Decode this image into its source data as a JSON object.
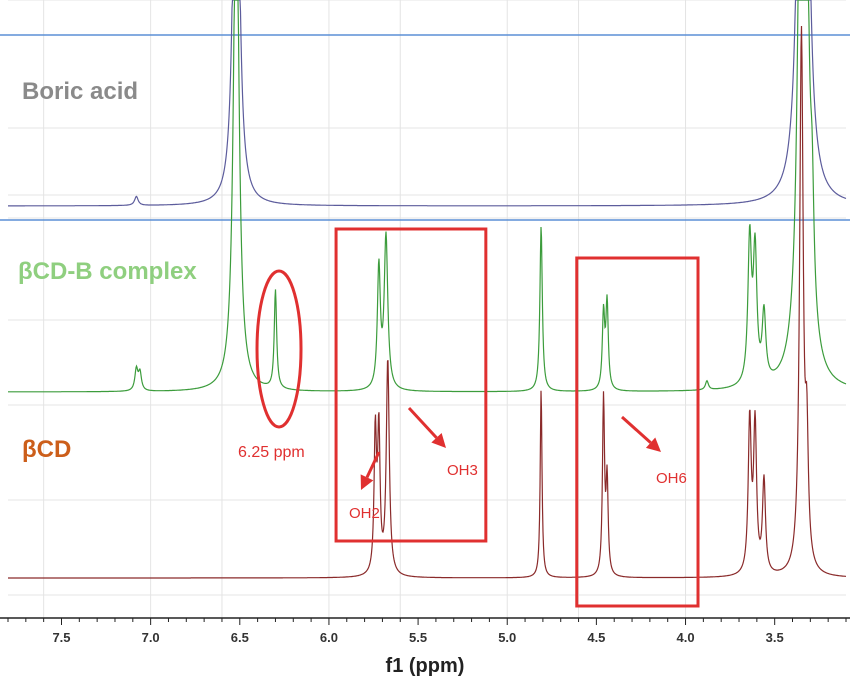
{
  "chart_data": {
    "type": "line",
    "title": "",
    "xlabel": "f1 (ppm)",
    "ylabel": "",
    "x_reversed": true,
    "xlim": [
      7.8,
      3.1
    ],
    "x_ticks": [
      "7.5",
      "7.0",
      "6.5",
      "6.0",
      "5.5",
      "5.0",
      "4.5",
      "4.0",
      "3.5"
    ],
    "grid": true,
    "series": [
      {
        "name": "Boric acid",
        "color": "#5c5c9c",
        "label_color": "#8a8a8a",
        "peaks": [
          {
            "ppm": 7.08,
            "height": 0.05,
            "width": 0.012
          },
          {
            "ppm": 6.52,
            "height": 3.0,
            "width": 0.018
          },
          {
            "ppm": 3.35,
            "height": 3.0,
            "width": 0.02
          },
          {
            "ppm": 3.33,
            "height": 3.0,
            "width": 0.02
          }
        ]
      },
      {
        "name": "βCD-B complex",
        "color": "#3c9c3c",
        "label_color": "#8fcf7f",
        "peaks": [
          {
            "ppm": 7.08,
            "height": 0.12,
            "width": 0.01
          },
          {
            "ppm": 7.06,
            "height": 0.1,
            "width": 0.01
          },
          {
            "ppm": 6.52,
            "height": 3.0,
            "width": 0.018
          },
          {
            "ppm": 6.3,
            "height": 0.55,
            "width": 0.008
          },
          {
            "ppm": 5.72,
            "height": 0.67,
            "width": 0.01
          },
          {
            "ppm": 5.68,
            "height": 0.85,
            "width": 0.012
          },
          {
            "ppm": 4.81,
            "height": 0.92,
            "width": 0.008
          },
          {
            "ppm": 4.46,
            "height": 0.42,
            "width": 0.008
          },
          {
            "ppm": 4.44,
            "height": 0.48,
            "width": 0.008
          },
          {
            "ppm": 3.88,
            "height": 0.05,
            "width": 0.01
          },
          {
            "ppm": 3.64,
            "height": 0.8,
            "width": 0.012
          },
          {
            "ppm": 3.61,
            "height": 0.72,
            "width": 0.012
          },
          {
            "ppm": 3.56,
            "height": 0.38,
            "width": 0.012
          },
          {
            "ppm": 3.35,
            "height": 3.0,
            "width": 0.02
          },
          {
            "ppm": 3.33,
            "height": 3.0,
            "width": 0.02
          },
          {
            "ppm": 3.29,
            "height": 0.55,
            "width": 0.012
          }
        ]
      },
      {
        "name": "βCD",
        "color": "#8a2a2a",
        "label_color": "#cc5e1a",
        "peaks": [
          {
            "ppm": 5.74,
            "height": 0.78,
            "width": 0.008
          },
          {
            "ppm": 5.72,
            "height": 0.78,
            "width": 0.008
          },
          {
            "ppm": 5.67,
            "height": 1.2,
            "width": 0.01
          },
          {
            "ppm": 4.81,
            "height": 1.05,
            "width": 0.006
          },
          {
            "ppm": 4.46,
            "height": 0.98,
            "width": 0.007
          },
          {
            "ppm": 4.44,
            "height": 0.52,
            "width": 0.007
          },
          {
            "ppm": 3.64,
            "height": 0.85,
            "width": 0.01
          },
          {
            "ppm": 3.61,
            "height": 0.82,
            "width": 0.01
          },
          {
            "ppm": 3.56,
            "height": 0.52,
            "width": 0.01
          },
          {
            "ppm": 3.35,
            "height": 3.0,
            "width": 0.012
          },
          {
            "ppm": 3.32,
            "height": 0.65,
            "width": 0.01
          }
        ]
      }
    ],
    "divider_color": "#5b8fd6",
    "highlight_color": "#e03030",
    "annotations": [
      {
        "text": "6.25 ppm",
        "shape": "ellipse"
      },
      {
        "text": "OH2",
        "shape": "arrow"
      },
      {
        "text": "OH3",
        "shape": "arrow"
      },
      {
        "text": "OH6",
        "shape": "arrow"
      }
    ]
  }
}
